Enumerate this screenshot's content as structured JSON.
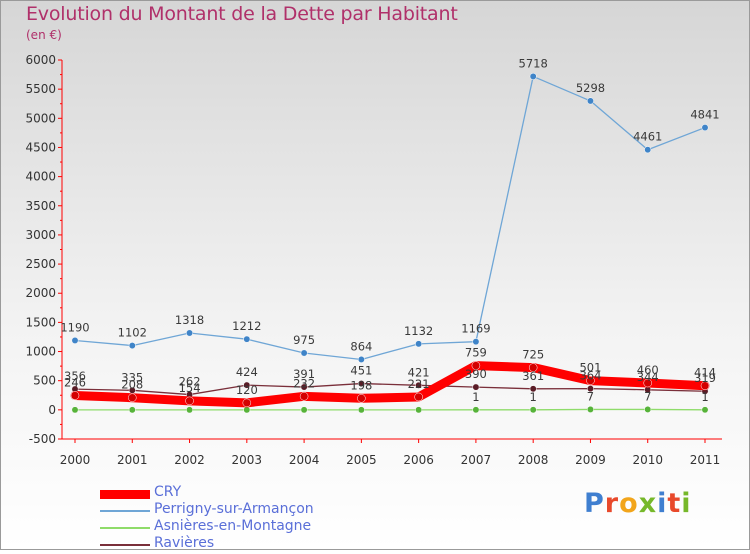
{
  "header": {
    "title": "Evolution du Montant de la Dette par Habitant",
    "subtitle": "(en €)"
  },
  "logo": {
    "text": "Proxiti"
  },
  "chart_data": {
    "type": "line",
    "title": "Evolution du Montant de la Dette par Habitant",
    "subtitle": "(en €)",
    "categories": [
      "2000",
      "2001",
      "2002",
      "2003",
      "2004",
      "2005",
      "2006",
      "2007",
      "2008",
      "2009",
      "2010",
      "2011"
    ],
    "ylim": [
      -500,
      6000
    ],
    "yticks": [
      -500,
      0,
      500,
      1000,
      1500,
      2000,
      2500,
      3000,
      3500,
      4000,
      4500,
      5000,
      5500,
      6000
    ],
    "grid": false,
    "legend": "bottom-left",
    "series": [
      {
        "name": "CRY",
        "color": "#ff0000",
        "values": [
          246,
          208,
          154,
          120,
          232,
          198,
          221,
          759,
          725,
          501,
          460,
          414
        ],
        "labels": [
          "246",
          "208",
          "154",
          "120",
          "232",
          "198",
          "221",
          "759",
          "725",
          "501",
          "460",
          "414"
        ]
      },
      {
        "name": "Perrigny-sur-Armançon",
        "color": "#6fa6d6",
        "values": [
          1190,
          1102,
          1318,
          1212,
          975,
          864,
          1132,
          1169,
          5718,
          5298,
          4461,
          4841
        ],
        "labels": [
          "1190",
          "1102",
          "1318",
          "1212",
          "975",
          "864",
          "1132",
          "1169",
          "5718",
          "5298",
          "4461",
          "4841"
        ]
      },
      {
        "name": "Asnières-en-Montagne",
        "color": "#8fdc6a",
        "values": [
          0,
          0,
          0,
          0,
          0,
          0,
          0,
          1,
          1,
          7,
          7,
          1
        ],
        "labels": [
          "",
          "",
          "",
          "",
          "",
          "",
          "",
          "1",
          "1",
          "7",
          "7",
          "1"
        ]
      },
      {
        "name": "Ravières",
        "color": "#7a2f3a",
        "values": [
          356,
          335,
          262,
          424,
          391,
          451,
          421,
          390,
          361,
          364,
          344,
          319
        ],
        "labels": [
          "356",
          "335",
          "262",
          "424",
          "391",
          "451",
          "421",
          "390",
          "361",
          "364",
          "344",
          "319"
        ]
      }
    ]
  }
}
